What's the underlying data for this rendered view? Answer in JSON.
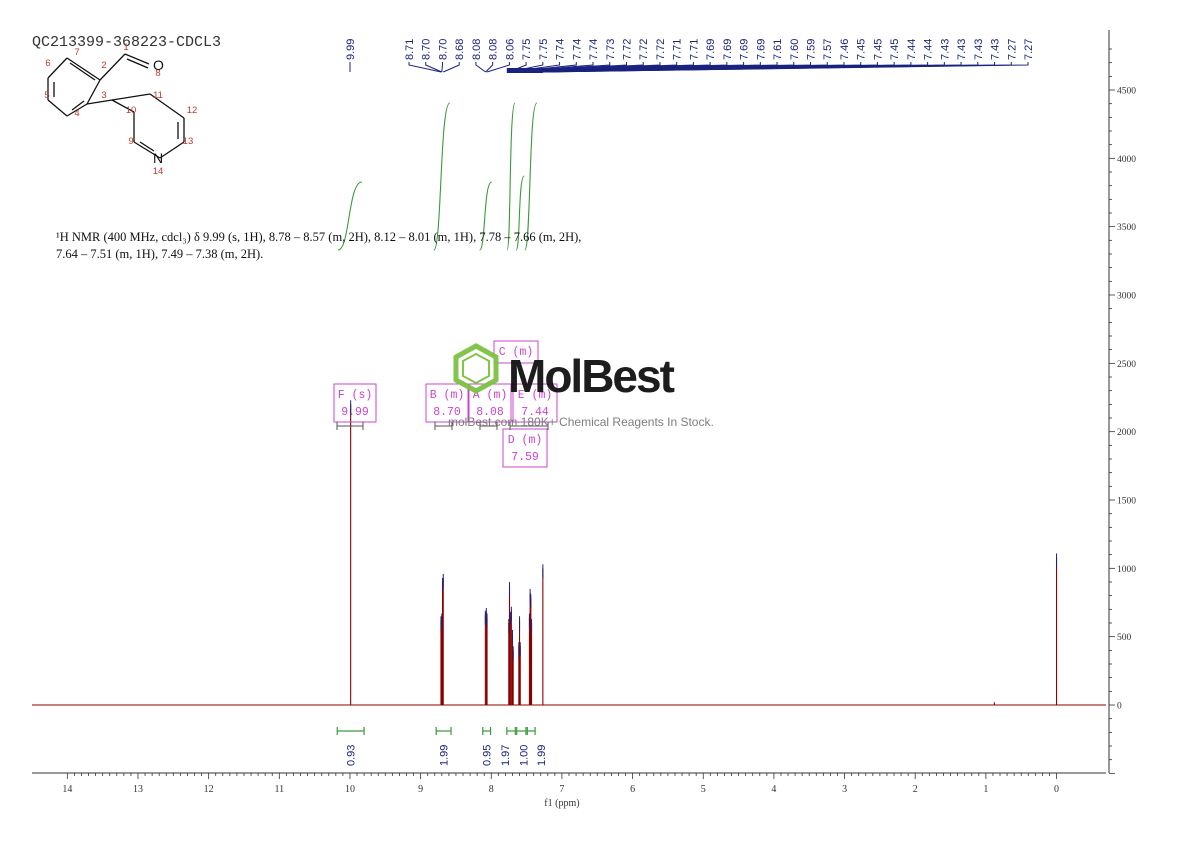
{
  "sample_id": "QC213399-368223-CDCL3",
  "nmr_text": {
    "line1": "¹H NMR (400 MHz, cdcl₃) δ 9.99 (s, 1H), 8.78 – 8.57 (m, 2H), 8.12 – 8.01 (m, 1H), 7.78 – 7.66 (m, 2H),",
    "line2": "7.64 – 7.51 (m, 1H), 7.49 – 7.38 (m, 2H)."
  },
  "structure": {
    "atom_numbers": [
      "1",
      "2",
      "3",
      "4",
      "5",
      "6",
      "7",
      "8",
      "9",
      "10",
      "11",
      "12",
      "13",
      "14"
    ],
    "atoms": [
      "O",
      "N"
    ]
  },
  "watermark": {
    "brand": "MolBest",
    "tagline": "molBest.com 180K+ Chemical Reagents In Stock."
  },
  "colors": {
    "spectrum": "#8b0000",
    "peak_labels": "#1a237e",
    "integrals": "#3a9a3a",
    "multiplet_boxes": "#cc44cc",
    "watermark": "#7dc242"
  },
  "chart_data": {
    "type": "line",
    "xlabel": "f1 (ppm)",
    "xlim": [
      14.5,
      -0.7
    ],
    "ylim": [
      -500,
      4900
    ],
    "x_ticks": [
      "14",
      "13",
      "12",
      "11",
      "10",
      "9",
      "8",
      "7",
      "6",
      "5",
      "4",
      "3",
      "2",
      "1",
      "0"
    ],
    "y_ticks": [
      "0",
      "500",
      "1000",
      "1500",
      "2000",
      "2500",
      "3000",
      "3500",
      "4000",
      "4500"
    ],
    "peak_labels": [
      "9.99",
      "8.71",
      "8.70",
      "8.70",
      "8.68",
      "8.08",
      "8.08",
      "8.06",
      "7.75",
      "7.75",
      "7.74",
      "7.74",
      "7.74",
      "7.73",
      "7.72",
      "7.72",
      "7.72",
      "7.71",
      "7.71",
      "7.69",
      "7.69",
      "7.69",
      "7.69",
      "7.61",
      "7.60",
      "7.59",
      "7.57",
      "7.46",
      "7.45",
      "7.45",
      "7.45",
      "7.44",
      "7.44",
      "7.43",
      "7.43",
      "7.43",
      "7.43",
      "7.27",
      "7.27"
    ],
    "peaks": [
      {
        "ppm": 9.99,
        "height": 2200
      },
      {
        "ppm": 8.712,
        "height": 620
      },
      {
        "ppm": 8.7,
        "height": 640
      },
      {
        "ppm": 8.69,
        "height": 900
      },
      {
        "ppm": 8.68,
        "height": 930
      },
      {
        "ppm": 8.084,
        "height": 660
      },
      {
        "ppm": 8.07,
        "height": 680
      },
      {
        "ppm": 8.06,
        "height": 640
      },
      {
        "ppm": 7.752,
        "height": 600
      },
      {
        "ppm": 7.742,
        "height": 870
      },
      {
        "ppm": 7.73,
        "height": 650
      },
      {
        "ppm": 7.716,
        "height": 690
      },
      {
        "ppm": 7.7,
        "height": 520
      },
      {
        "ppm": 7.69,
        "height": 400
      },
      {
        "ppm": 7.61,
        "height": 430
      },
      {
        "ppm": 7.6,
        "height": 620
      },
      {
        "ppm": 7.59,
        "height": 430
      },
      {
        "ppm": 7.46,
        "height": 640
      },
      {
        "ppm": 7.45,
        "height": 820
      },
      {
        "ppm": 7.44,
        "height": 780
      },
      {
        "ppm": 7.43,
        "height": 600
      },
      {
        "ppm": 7.27,
        "height": 1000
      },
      {
        "ppm": 0.88,
        "height": 20
      },
      {
        "ppm": 0.0,
        "height": 1080
      }
    ],
    "multiplets": [
      {
        "id": "F (s)",
        "shift": "9.99"
      },
      {
        "id": "B (m)",
        "shift": "8.70"
      },
      {
        "id": "A (m)",
        "shift": "8.08"
      },
      {
        "id": "C (m)",
        "shift": ""
      },
      {
        "id": "E (m)",
        "shift": "7.44"
      },
      {
        "id": "D (m)",
        "shift": "7.59"
      }
    ],
    "integrals": [
      {
        "label": "0.93",
        "from": 10.18,
        "to": 9.8
      },
      {
        "label": "1.99",
        "from": 8.78,
        "to": 8.57
      },
      {
        "label": "0.95",
        "from": 8.12,
        "to": 8.01
      },
      {
        "label": "1.97",
        "from": 7.78,
        "to": 7.66
      },
      {
        "label": "1.00",
        "from": 7.64,
        "to": 7.51
      },
      {
        "label": "1.99",
        "from": 7.49,
        "to": 7.38
      }
    ]
  }
}
